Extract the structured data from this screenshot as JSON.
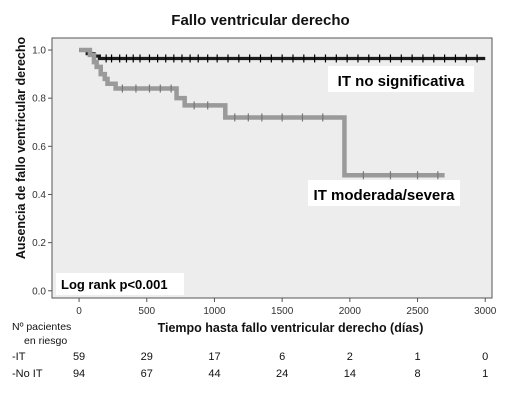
{
  "chart_data": {
    "type": "line",
    "title": "Fallo ventricular derecho",
    "xlabel": "Tiempo hasta fallo ventricular derecho (días)",
    "ylabel": "Ausencia de fallo ventricular derecho",
    "xlim": [
      -200,
      3050
    ],
    "ylim": [
      -0.03,
      1.05
    ],
    "xticks": [
      0,
      500,
      1000,
      1500,
      2000,
      2500,
      3000
    ],
    "yticks": [
      "0.0",
      "0.2",
      "0.4",
      "0.6",
      "0.8",
      "1.0"
    ],
    "annotation": "Log rank p<0.001",
    "series": [
      {
        "name": "IT no significativa",
        "color": "#1a1a1a",
        "step_points": [
          [
            0,
            1.0
          ],
          [
            60,
            0.985
          ],
          [
            110,
            0.975
          ],
          [
            150,
            0.965
          ],
          [
            3000,
            0.965
          ]
        ],
        "censor_x": [
          200,
          240,
          300,
          350,
          400,
          450,
          520,
          580,
          640,
          700,
          760,
          820,
          880,
          950,
          1020,
          1100,
          1180,
          1260,
          1340,
          1420,
          1500,
          1580,
          1660,
          1740,
          1820,
          1900,
          1980,
          2060,
          2140,
          2220,
          2300,
          2380,
          2460,
          2540,
          2620,
          2700,
          2780,
          2860,
          2940
        ]
      },
      {
        "name": "IT moderada/severa",
        "color": "#9a9a9a",
        "step_points": [
          [
            0,
            1.0
          ],
          [
            80,
            0.98
          ],
          [
            110,
            0.95
          ],
          [
            130,
            0.93
          ],
          [
            160,
            0.9
          ],
          [
            190,
            0.88
          ],
          [
            210,
            0.86
          ],
          [
            270,
            0.84
          ],
          [
            720,
            0.8
          ],
          [
            780,
            0.77
          ],
          [
            1080,
            0.72
          ],
          [
            1960,
            0.48
          ],
          [
            2700,
            0.48
          ]
        ],
        "censor_x": [
          320,
          420,
          520,
          600,
          680,
          850,
          950,
          1150,
          1250,
          1350,
          1500,
          1650,
          1800,
          2100,
          2300,
          2500,
          2650
        ]
      }
    ],
    "risk_table": {
      "header_line1": "Nº pacientes",
      "header_line2": "en riesgo",
      "times": [
        0,
        500,
        1000,
        1500,
        2000,
        2500,
        3000
      ],
      "rows": [
        {
          "label": "-IT",
          "values": [
            "59",
            "29",
            "17",
            "6",
            "2",
            "1",
            "0"
          ]
        },
        {
          "label": "-No IT",
          "values": [
            "94",
            "67",
            "44",
            "24",
            "14",
            "8",
            "1"
          ]
        }
      ]
    }
  }
}
